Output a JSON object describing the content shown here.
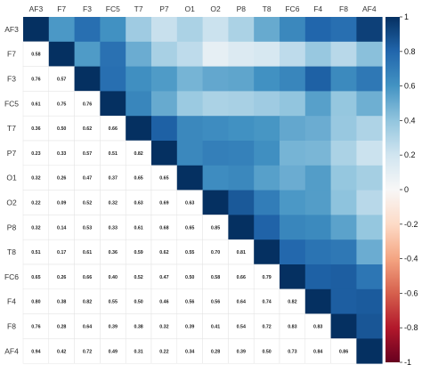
{
  "chart_data": {
    "type": "heatmap",
    "variables": [
      "AF3",
      "F7",
      "F3",
      "FC5",
      "T7",
      "P7",
      "O1",
      "O2",
      "P8",
      "T8",
      "FC6",
      "F4",
      "F8",
      "AF4"
    ],
    "upper_triangle": "colored cells",
    "lower_triangle": "numeric values",
    "diagonal_value": 1,
    "lower_values": [
      [],
      [
        0.58
      ],
      [
        0.76,
        0.57
      ],
      [
        0.61,
        0.75,
        0.76
      ],
      [
        0.36,
        0.5,
        0.62,
        0.66
      ],
      [
        0.23,
        0.33,
        0.57,
        0.51,
        0.82
      ],
      [
        0.32,
        0.26,
        0.47,
        0.37,
        0.65,
        0.65
      ],
      [
        0.22,
        0.09,
        0.52,
        0.32,
        0.63,
        0.69,
        0.63
      ],
      [
        0.32,
        0.14,
        0.53,
        0.33,
        0.61,
        0.68,
        0.65,
        0.85
      ],
      [
        0.51,
        0.17,
        0.61,
        0.36,
        0.59,
        0.62,
        0.55,
        0.7,
        0.81
      ],
      [
        0.65,
        0.26,
        0.66,
        0.4,
        0.52,
        0.47,
        0.5,
        0.58,
        0.66,
        0.79
      ],
      [
        0.8,
        0.38,
        0.82,
        0.55,
        0.5,
        0.46,
        0.56,
        0.56,
        0.64,
        0.74,
        0.82
      ],
      [
        0.76,
        0.28,
        0.64,
        0.39,
        0.38,
        0.32,
        0.39,
        0.41,
        0.54,
        0.72,
        0.83,
        0.83
      ],
      [
        0.94,
        0.42,
        0.72,
        0.49,
        0.31,
        0.22,
        0.34,
        0.28,
        0.39,
        0.5,
        0.73,
        0.84,
        0.86
      ]
    ],
    "colorbar": {
      "min": -1,
      "max": 1,
      "ticks": [
        1,
        0.8,
        0.6,
        0.4,
        0.2,
        0,
        -0.2,
        -0.4,
        -0.6,
        -0.8,
        -1
      ],
      "tick_labels": [
        "1",
        "0.8",
        "0.6",
        "0.4",
        "0.2",
        "0",
        "-0.2",
        "-0.4",
        "-0.6",
        "-0.8",
        "-1"
      ],
      "colors": {
        "negative": "#67001f",
        "zero": "#f7f7f7",
        "positive": "#053061"
      }
    }
  }
}
